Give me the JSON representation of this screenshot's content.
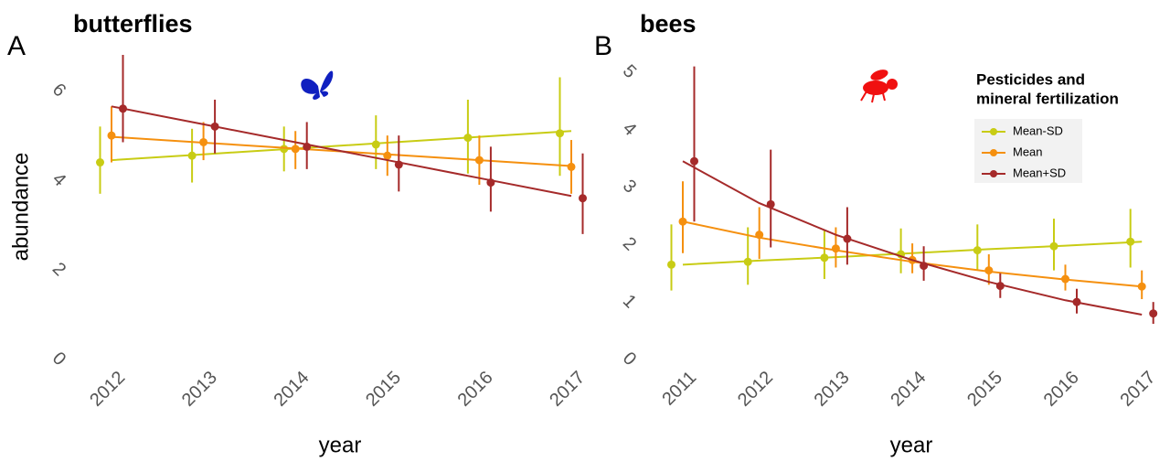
{
  "chart_data": [
    {
      "type": "line",
      "label": "A",
      "title": "butterflies",
      "xlabel": "year",
      "ylabel": "abundance",
      "categories": [
        "2012",
        "2013",
        "2014",
        "2015",
        "2016",
        "2017"
      ],
      "ylim": [
        0,
        6.8
      ],
      "yticks": [
        0,
        2,
        4,
        6
      ],
      "series": [
        {
          "color": "#c8cc14",
          "values": [
            4.4,
            4.55,
            4.7,
            4.8,
            4.95,
            5.05
          ],
          "err_low": [
            3.7,
            3.95,
            4.2,
            4.25,
            4.15,
            4.1
          ],
          "err_high": [
            5.2,
            5.15,
            5.2,
            5.45,
            5.8,
            6.3
          ],
          "fit": [
            4.45,
            4.58,
            4.71,
            4.84,
            4.97,
            5.1
          ]
        },
        {
          "color": "#f5900f",
          "values": [
            5.0,
            4.85,
            4.7,
            4.55,
            4.45,
            4.3
          ],
          "err_low": [
            4.4,
            4.45,
            4.25,
            4.1,
            3.9,
            3.7
          ],
          "err_high": [
            5.65,
            5.3,
            5.1,
            5.0,
            5.0,
            4.9
          ],
          "fit": [
            4.97,
            4.84,
            4.71,
            4.58,
            4.45,
            4.32
          ]
        },
        {
          "color": "#a52a2a",
          "values": [
            5.6,
            5.2,
            4.75,
            4.35,
            3.95,
            3.6
          ],
          "err_low": [
            4.85,
            4.6,
            4.25,
            3.75,
            3.3,
            2.8
          ],
          "err_high": [
            6.8,
            5.8,
            5.3,
            5.0,
            4.75,
            4.6
          ],
          "fit": [
            5.65,
            5.25,
            4.85,
            4.45,
            4.05,
            3.65
          ]
        }
      ]
    },
    {
      "type": "line",
      "label": "B",
      "title": "bees",
      "xlabel": "year",
      "legend_title": [
        "Pesticides and",
        "mineral fertilization"
      ],
      "legend": "top-right",
      "categories": [
        "2011",
        "2012",
        "2013",
        "2014",
        "2015",
        "2016",
        "2017"
      ],
      "ylim": [
        0,
        5.3
      ],
      "yticks": [
        0,
        1,
        2,
        3,
        4,
        5
      ],
      "series": [
        {
          "name": "Mean-SD",
          "color": "#c8cc14",
          "values": [
            1.65,
            1.7,
            1.77,
            1.83,
            1.9,
            1.97,
            2.05
          ],
          "err_low": [
            1.2,
            1.3,
            1.4,
            1.5,
            1.55,
            1.55,
            1.6
          ],
          "err_high": [
            2.35,
            2.3,
            2.25,
            2.28,
            2.35,
            2.45,
            2.62
          ],
          "fit": [
            1.65,
            1.72,
            1.78,
            1.85,
            1.92,
            1.98,
            2.05
          ]
        },
        {
          "name": "Mean",
          "color": "#f5900f",
          "values": [
            2.4,
            2.17,
            1.93,
            1.73,
            1.55,
            1.4,
            1.27
          ],
          "err_low": [
            1.85,
            1.75,
            1.6,
            1.5,
            1.3,
            1.2,
            1.05
          ],
          "err_high": [
            3.1,
            2.65,
            2.3,
            2.02,
            1.83,
            1.65,
            1.55
          ],
          "fit": [
            2.4,
            2.12,
            1.9,
            1.7,
            1.53,
            1.39,
            1.27
          ]
        },
        {
          "name": "Mean+SD",
          "color": "#a52a2a",
          "values": [
            3.45,
            2.7,
            2.1,
            1.63,
            1.28,
            1.0,
            0.8
          ],
          "err_low": [
            2.4,
            1.95,
            1.65,
            1.37,
            1.07,
            0.8,
            0.62
          ],
          "err_high": [
            5.1,
            3.65,
            2.65,
            1.97,
            1.5,
            1.23,
            1.0
          ],
          "fit": [
            3.45,
            2.72,
            2.17,
            1.73,
            1.35,
            1.03,
            0.78
          ]
        }
      ]
    }
  ]
}
